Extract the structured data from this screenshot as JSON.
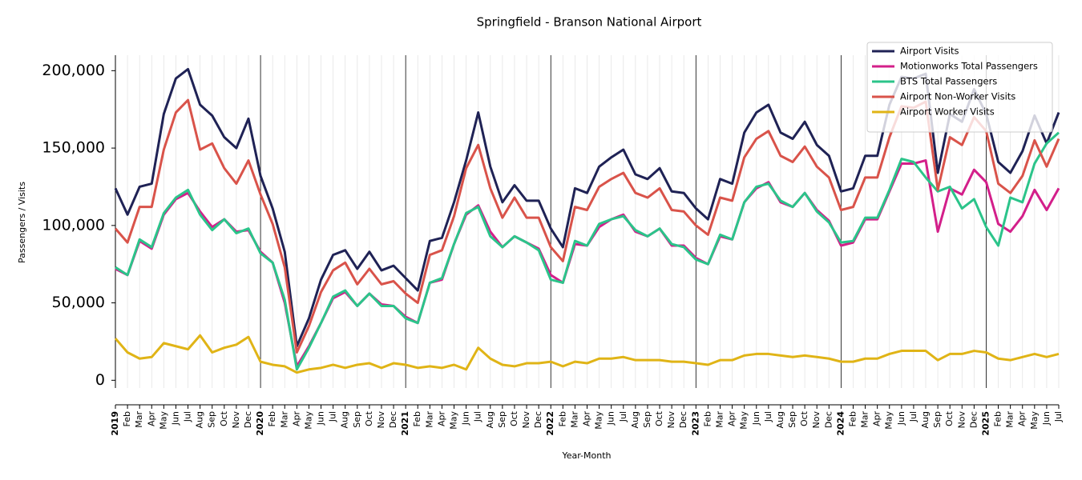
{
  "chart_data": {
    "type": "line",
    "title": "Springfield - Branson National Airport",
    "x_label": "Year-Month",
    "y_label": "Passengers / Visits",
    "categories": [
      "2019",
      "Feb",
      "Mar",
      "Apr",
      "May",
      "Jun",
      "Jul",
      "Aug",
      "Sep",
      "Oct",
      "Nov",
      "Dec",
      "2020",
      "Feb",
      "Mar",
      "Apr",
      "May",
      "Jun",
      "Jul",
      "Aug",
      "Sep",
      "Oct",
      "Nov",
      "Dec",
      "2021",
      "Feb",
      "Mar",
      "Apr",
      "May",
      "Jun",
      "Jul",
      "Aug",
      "Sep",
      "Oct",
      "Nov",
      "Dec",
      "2022",
      "Feb",
      "Mar",
      "Apr",
      "May",
      "Jun",
      "Jul",
      "Aug",
      "Sep",
      "Oct",
      "Nov",
      "Dec",
      "2023",
      "Feb",
      "Mar",
      "Apr",
      "May",
      "Jun",
      "Jul",
      "Aug",
      "Sep",
      "Oct",
      "Nov",
      "Dec",
      "2024",
      "Feb",
      "Mar",
      "Apr",
      "May",
      "Jun",
      "Jul",
      "Aug",
      "Sep",
      "Oct",
      "Nov",
      "Dec",
      "2025",
      "Feb",
      "Mar",
      "Apr",
      "May",
      "Jun",
      "Jul"
    ],
    "ylim": [
      -5000,
      210000
    ],
    "yticks": [
      0,
      {
        "value": 50000,
        "label": "50,000"
      },
      {
        "value": 100000,
        "label": "100,000"
      },
      {
        "value": 150000,
        "label": "150,000"
      },
      {
        "value": 200000,
        "label": "200,000"
      }
    ],
    "grid": true,
    "legend": "upper right",
    "series": [
      {
        "name": "Airport Visits",
        "color": "#1f2255",
        "values": [
          124000,
          107000,
          125000,
          127000,
          172000,
          195000,
          201000,
          178000,
          171000,
          157000,
          150000,
          169000,
          132000,
          111000,
          83000,
          22000,
          40000,
          65000,
          81000,
          84000,
          72000,
          83000,
          71000,
          74000,
          66000,
          58000,
          90000,
          92000,
          115000,
          142000,
          173000,
          138000,
          115000,
          126000,
          116000,
          116000,
          98000,
          86000,
          124000,
          121000,
          138000,
          144000,
          149000,
          133000,
          130000,
          137000,
          122000,
          121000,
          111000,
          104000,
          130000,
          127000,
          160000,
          173000,
          178000,
          160000,
          156000,
          167000,
          152000,
          145000,
          122000,
          124000,
          145000,
          145000,
          178000,
          196000,
          195000,
          198000,
          134000,
          172000,
          167000,
          188000,
          172000,
          141000,
          134000,
          148000,
          171000,
          153000,
          173000
        ]
      },
      {
        "name": "Motionworks Total Passengers",
        "color": "#d31f8a",
        "values": [
          72000,
          68000,
          90000,
          85000,
          107000,
          117000,
          121000,
          109000,
          99000,
          104000,
          96000,
          97000,
          83000,
          76000,
          50000,
          9000,
          22000,
          37000,
          53000,
          57000,
          48000,
          56000,
          49000,
          48000,
          41000,
          37000,
          63000,
          65000,
          88000,
          107000,
          113000,
          96000,
          86000,
          93000,
          89000,
          85000,
          68000,
          63000,
          88000,
          87000,
          99000,
          104000,
          107000,
          96000,
          93000,
          98000,
          87000,
          87000,
          79000,
          75000,
          93000,
          91000,
          115000,
          124000,
          128000,
          115000,
          112000,
          121000,
          110000,
          103000,
          87000,
          89000,
          104000,
          104000,
          122000,
          140000,
          140000,
          142000,
          96000,
          124000,
          120000,
          136000,
          128000,
          101000,
          96000,
          106000,
          123000,
          110000,
          124000
        ]
      },
      {
        "name": "BTS Total Passengers",
        "color": "#2bc48a",
        "values": [
          73000,
          68000,
          91000,
          86000,
          108000,
          118000,
          123000,
          107000,
          97000,
          104000,
          95000,
          98000,
          82000,
          76000,
          52000,
          7000,
          21000,
          37000,
          54000,
          58000,
          48000,
          56000,
          48000,
          48000,
          40000,
          37000,
          63000,
          66000,
          88000,
          108000,
          112000,
          93000,
          86000,
          93000,
          89000,
          84000,
          65000,
          63000,
          90000,
          87000,
          101000,
          104000,
          106000,
          97000,
          93000,
          98000,
          88000,
          86000,
          78000,
          75000,
          94000,
          91000,
          115000,
          125000,
          127000,
          116000,
          112000,
          121000,
          109000,
          102000,
          89000,
          90000,
          105000,
          105000,
          123000,
          143000,
          141000,
          131000,
          122000,
          125000,
          111000,
          117000,
          99000,
          87000,
          118000,
          115000,
          140000,
          153000,
          160000
        ]
      },
      {
        "name": "Airport Non-Worker Visits",
        "color": "#d9534a",
        "values": [
          98000,
          89000,
          112000,
          112000,
          149000,
          173000,
          181000,
          149000,
          153000,
          137000,
          127000,
          142000,
          120000,
          101000,
          73000,
          18000,
          35000,
          57000,
          71000,
          76000,
          62000,
          72000,
          62000,
          64000,
          56000,
          50000,
          81000,
          84000,
          106000,
          137000,
          152000,
          124000,
          105000,
          118000,
          105000,
          105000,
          86000,
          77000,
          112000,
          110000,
          125000,
          130000,
          134000,
          121000,
          118000,
          124000,
          110000,
          109000,
          100000,
          94000,
          118000,
          116000,
          144000,
          156000,
          161000,
          145000,
          141000,
          151000,
          138000,
          131000,
          110000,
          112000,
          131000,
          131000,
          157000,
          177000,
          176000,
          180000,
          123000,
          157000,
          152000,
          170000,
          161000,
          127000,
          121000,
          132000,
          155000,
          138000,
          156000
        ]
      },
      {
        "name": "Airport Worker Visits",
        "color": "#e0b416",
        "values": [
          27000,
          18000,
          14000,
          15000,
          24000,
          22000,
          20000,
          29000,
          18000,
          21000,
          23000,
          28000,
          12000,
          10000,
          9000,
          5000,
          7000,
          8000,
          10000,
          8000,
          10000,
          11000,
          8000,
          11000,
          10000,
          8000,
          9000,
          8000,
          10000,
          7000,
          21000,
          14000,
          10000,
          9000,
          11000,
          11000,
          12000,
          9000,
          12000,
          11000,
          14000,
          14000,
          15000,
          13000,
          13000,
          13000,
          12000,
          12000,
          11000,
          10000,
          13000,
          13000,
          16000,
          17000,
          17000,
          16000,
          15000,
          16000,
          15000,
          14000,
          12000,
          12000,
          14000,
          14000,
          17000,
          19000,
          19000,
          19000,
          13000,
          17000,
          17000,
          19000,
          18000,
          14000,
          13000,
          15000,
          17000,
          15000,
          17000
        ]
      }
    ]
  }
}
